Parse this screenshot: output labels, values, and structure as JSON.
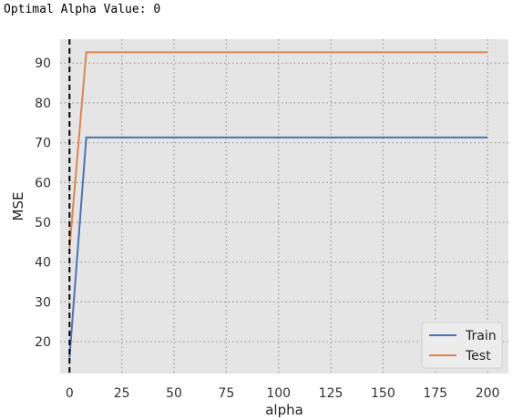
{
  "header": {
    "text": "Optimal Alpha Value: 0"
  },
  "chart_data": {
    "type": "line",
    "title": "",
    "xlabel": "alpha",
    "ylabel": "MSE",
    "xlim": [
      -4.5,
      210
    ],
    "ylim": [
      12,
      96
    ],
    "xticks": [
      0,
      25,
      50,
      75,
      100,
      125,
      150,
      175,
      200
    ],
    "yticks": [
      20,
      30,
      40,
      50,
      60,
      70,
      80,
      90
    ],
    "grid": true,
    "legend_position": "lower-right",
    "vline": {
      "x": 0,
      "style": "dashed",
      "color": "#000000"
    },
    "series": [
      {
        "name": "Train",
        "color": "#4c72b0",
        "x": [
          0,
          8,
          200
        ],
        "y": [
          16,
          71.3,
          71.3
        ]
      },
      {
        "name": "Test",
        "color": "#dd8452",
        "x": [
          0,
          8,
          200
        ],
        "y": [
          43.5,
          92.7,
          92.7
        ]
      }
    ]
  }
}
